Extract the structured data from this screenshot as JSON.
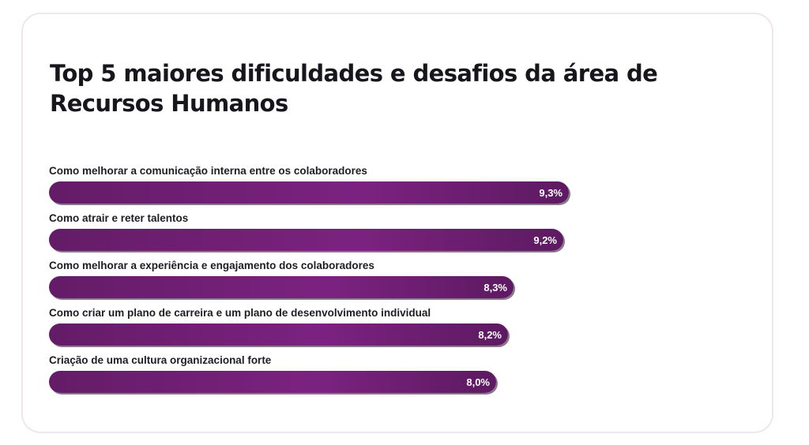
{
  "colors": {
    "bar": "#6e1f72",
    "card_border": "#f0e6ee",
    "title": "#16161c"
  },
  "chart_data": {
    "type": "bar",
    "orientation": "horizontal",
    "title": "Top 5 maiores dificuldades e desafios da área de Recursos Humanos",
    "categories": [
      "Como melhorar a comunicação interna entre os colaboradores",
      "Como atrair e reter talentos",
      "Como melhorar a experiência e engajamento dos colaboradores",
      "Como criar um plano de carreira e um plano de desenvolvimento individual",
      "Criação de uma cultura organizacional forte"
    ],
    "values": [
      9.3,
      9.2,
      8.3,
      8.2,
      8.0
    ],
    "value_labels": [
      "9,3%",
      "9,2%",
      "8,3%",
      "8,2%",
      "8,0%"
    ],
    "unit": "%",
    "grid": false,
    "legend": "none"
  }
}
